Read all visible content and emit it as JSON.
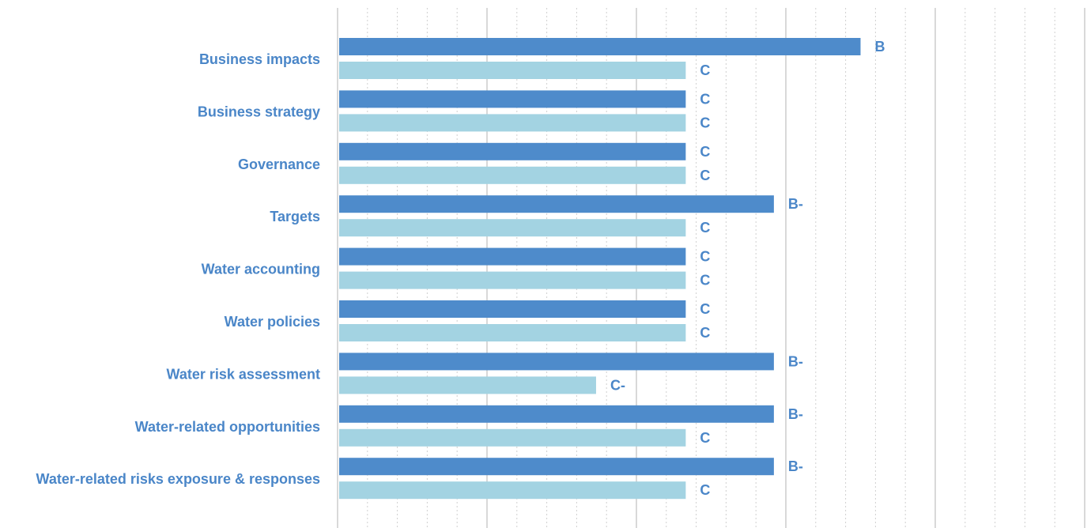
{
  "chart_data": {
    "type": "bar",
    "orientation": "horizontal",
    "title": "",
    "xlabel": "",
    "ylabel": "",
    "categories": [
      "Business impacts",
      "Business strategy",
      "Governance",
      "Targets",
      "Water accounting",
      "Water policies",
      "Water risk assessment",
      "Water-related opportunities",
      "Water-related risks exposure & responses"
    ],
    "series": [
      {
        "color": "#4e8bcb",
        "values": [
          3.5,
          2.33,
          2.33,
          2.92,
          2.33,
          2.33,
          2.92,
          2.92,
          2.92
        ],
        "labels": [
          "B",
          "C",
          "C",
          "B-",
          "C",
          "C",
          "B-",
          "B-",
          "B-"
        ]
      },
      {
        "color": "#a3d3e2",
        "values": [
          2.33,
          2.33,
          2.33,
          2.33,
          2.33,
          2.33,
          1.73,
          2.33,
          2.33
        ],
        "labels": [
          "C",
          "C",
          "C",
          "C",
          "C",
          "C",
          "C-",
          "C",
          "C"
        ]
      }
    ],
    "xlim": [
      0,
      5
    ],
    "grid": true,
    "legend": "none"
  }
}
